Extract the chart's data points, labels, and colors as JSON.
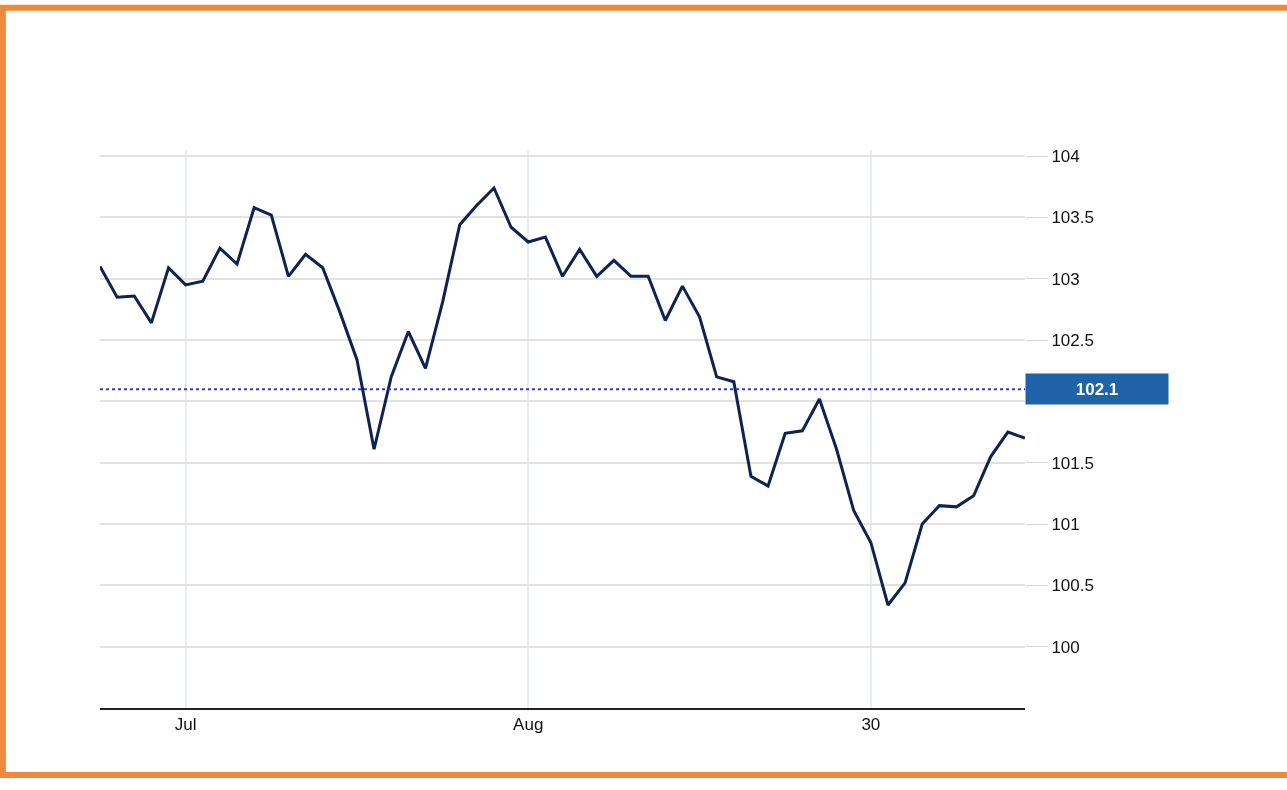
{
  "chart_data": {
    "type": "line",
    "categories": [
      null,
      null,
      null,
      null,
      null,
      "Jul",
      null,
      null,
      null,
      null,
      null,
      null,
      null,
      null,
      null,
      null,
      null,
      null,
      null,
      null,
      null,
      null,
      null,
      null,
      null,
      "Aug",
      null,
      null,
      null,
      null,
      null,
      null,
      null,
      null,
      null,
      null,
      null,
      null,
      null,
      null,
      null,
      null,
      null,
      null,
      null,
      "30",
      null,
      null,
      null,
      null,
      null,
      null,
      null,
      null,
      null
    ],
    "series": [
      {
        "color": "#0d2350",
        "values": [
          103.1,
          102.85,
          102.86,
          102.64,
          103.09,
          102.95,
          102.98,
          103.25,
          103.12,
          103.58,
          103.52,
          103.02,
          103.2,
          103.09,
          102.73,
          102.34,
          101.61,
          102.2,
          102.57,
          102.27,
          102.81,
          103.44,
          103.6,
          103.74,
          103.42,
          103.3,
          103.34,
          103.02,
          103.24,
          103.02,
          103.15,
          103.02,
          103.02,
          102.66,
          102.94,
          102.69,
          102.2,
          102.16,
          101.39,
          101.31,
          101.74,
          101.76,
          102.02,
          101.61,
          101.11,
          100.85,
          100.34,
          100.52,
          101.0,
          101.15,
          101.14,
          101.23,
          101.55,
          101.75,
          101.7
        ]
      }
    ],
    "ylim": [
      99.5,
      104.05
    ],
    "yticks": [
      100,
      100.5,
      101,
      101.5,
      {
        "value": 102,
        "label": null
      },
      102.5,
      103,
      103.5,
      104
    ],
    "ref_lines": [
      {
        "axis": "y",
        "value": 102.1,
        "label": "102.1",
        "color": "#3a3ab0",
        "line_style": "dotted"
      }
    ],
    "grid": true,
    "marker": "none",
    "line_style": "solid"
  }
}
